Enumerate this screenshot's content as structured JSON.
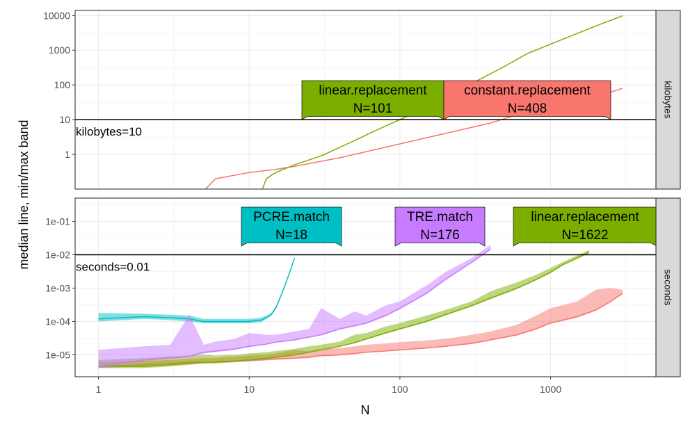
{
  "chart_data": {
    "type": "line",
    "xlabel": "N",
    "ylabel": "median line, min/max band",
    "x_scale": "log10",
    "xlim": [
      0.7,
      5000
    ],
    "x_ticks": [
      1,
      10,
      100,
      1000
    ],
    "x_tick_labels": [
      "1",
      "10",
      "100",
      "1000"
    ],
    "grid": true,
    "legend": "none",
    "colors": {
      "constant.replacement": "#F8766D",
      "linear.replacement": "#7CAE00",
      "PCRE.match": "#00BFC4",
      "TRE.match": "#C77CFF",
      "strip_bg": "#d9d9d9"
    },
    "panels": [
      {
        "strip": "kilobytes",
        "y_scale": "log10",
        "ylim": [
          0.1,
          14000
        ],
        "y_ticks": [
          1,
          10,
          100,
          1000,
          10000
        ],
        "y_tick_labels": [
          "1",
          "10",
          "100",
          "1000",
          "10000"
        ],
        "ref_line": {
          "y": 10,
          "label": "kilobytes=10"
        },
        "series": [
          {
            "name": "constant.replacement",
            "x": [
              3.5,
              5,
              6,
              8,
              10,
              15,
              20,
              40,
              60,
              100,
              200,
              400,
              600,
              1000,
              2000,
              3000
            ],
            "y": [
              0.04,
              0.09,
              0.2,
              0.25,
              0.3,
              0.37,
              0.45,
              0.8,
              1.2,
              2,
              4,
              8,
              14,
              22,
              45,
              80
            ]
          },
          {
            "name": "linear.replacement",
            "x": [
              12,
              13,
              15,
              20,
              30,
              50,
              70,
              100,
              150,
              200,
              300,
              500,
              700,
              1000,
              2000,
              3000
            ],
            "y": [
              0.08,
              0.2,
              0.3,
              0.5,
              0.9,
              2.5,
              5,
              10,
              22,
              45,
              110,
              350,
              800,
              1500,
              5000,
              9800
            ]
          }
        ],
        "boxes": [
          {
            "series": "linear.replacement",
            "name": "linear.replacement",
            "label": "N=101"
          },
          {
            "series": "constant.replacement",
            "name": "constant.replacement",
            "label": "N=408"
          }
        ]
      },
      {
        "strip": "seconds",
        "y_scale": "log10",
        "ylim": [
          2.2e-06,
          0.5
        ],
        "y_ticks": [
          1e-05,
          0.0001,
          0.001,
          0.01,
          0.1
        ],
        "y_tick_labels": [
          "1e-05",
          "1e-04",
          "1e-03",
          "1e-02",
          "1e-01"
        ],
        "ref_line": {
          "y": 0.01,
          "label": "seconds=0.01"
        },
        "series": [
          {
            "name": "constant.replacement",
            "x": [
              1,
              2,
              3,
              4,
              5,
              6,
              8,
              10,
              13,
              15,
              20,
              25,
              30,
              40,
              50,
              60,
              80,
              100,
              150,
              200,
              300,
              400,
              600,
              800,
              1000,
              1500,
              2000,
              2500,
              3000
            ],
            "y": [
              4.5e-06,
              5e-06,
              5.5e-06,
              6e-06,
              6e-06,
              6.2e-06,
              6.5e-06,
              6.8e-06,
              7.2e-06,
              7.5e-06,
              8e-06,
              8.5e-06,
              9.5e-06,
              1e-05,
              1.1e-05,
              1.2e-05,
              1.3e-05,
              1.4e-05,
              1.6e-05,
              1.8e-05,
              2.2e-05,
              2.8e-05,
              4e-05,
              6e-05,
              9e-05,
              0.00014,
              0.00022,
              0.0004,
              0.0007
            ],
            "min": [
              4e-06,
              4.5e-06,
              5e-06,
              5.5e-06,
              5.5e-06,
              5.8e-06,
              6e-06,
              6.3e-06,
              6.8e-06,
              7e-06,
              7.5e-06,
              8e-06,
              9e-06,
              9.5e-06,
              1.05e-05,
              1.15e-05,
              1.25e-05,
              1.35e-05,
              1.55e-05,
              1.75e-05,
              2.1e-05,
              2.7e-05,
              3.8e-05,
              5.7e-05,
              8.5e-05,
              0.00013,
              0.00021,
              0.00038,
              0.00065
            ],
            "max": [
              6e-06,
              6.5e-06,
              7e-06,
              7.5e-06,
              8e-06,
              8e-06,
              9e-06,
              9.5e-06,
              1e-05,
              1.1e-05,
              1.4e-05,
              1.3e-05,
              1.5e-05,
              1.6e-05,
              1.8e-05,
              2e-05,
              2.2e-05,
              2.4e-05,
              2.7e-05,
              3e-05,
              4e-05,
              5e-05,
              8e-05,
              0.00015,
              0.00025,
              0.0004,
              0.0009,
              0.001,
              0.0009
            ]
          },
          {
            "name": "linear.replacement",
            "x": [
              1,
              2,
              3,
              4,
              5,
              6,
              8,
              10,
              13,
              15,
              20,
              25,
              30,
              40,
              50,
              60,
              80,
              100,
              150,
              200,
              300,
              400,
              600,
              800,
              1000,
              1200,
              1500,
              1800
            ],
            "y": [
              4.5e-06,
              4.5e-06,
              5e-06,
              5.5e-06,
              6e-06,
              6e-06,
              6.5e-06,
              7e-06,
              8e-06,
              8.5e-06,
              1e-05,
              1.2e-05,
              1.4e-05,
              1.8e-05,
              2.3e-05,
              3e-05,
              4.5e-05,
              6e-05,
              0.0001,
              0.00016,
              0.0003,
              0.0005,
              0.001,
              0.0018,
              0.003,
              0.005,
              0.008,
              0.012
            ],
            "min": [
              4e-06,
              4e-06,
              4.5e-06,
              5e-06,
              5.5e-06,
              5.5e-06,
              6e-06,
              6.5e-06,
              7.5e-06,
              8e-06,
              9.5e-06,
              1.15e-05,
              1.35e-05,
              1.75e-05,
              2.2e-05,
              2.9e-05,
              4.3e-05,
              5.7e-05,
              9.5e-05,
              0.00015,
              0.00028,
              0.00047,
              0.00095,
              0.0017,
              0.0028,
              0.0047,
              0.0075,
              0.011
            ],
            "max": [
              7e-06,
              8e-06,
              9e-06,
              9.5e-06,
              1e-05,
              9.5e-06,
              1e-05,
              1.1e-05,
              1.2e-05,
              1.3e-05,
              1.5e-05,
              1.8e-05,
              2e-05,
              2.5e-05,
              4e-05,
              4.5e-05,
              7e-05,
              9e-05,
              0.00015,
              0.00022,
              0.0004,
              0.0008,
              0.0015,
              0.0025,
              0.004,
              0.006,
              0.0095,
              0.014
            ]
          },
          {
            "name": "PCRE.match",
            "x": [
              1,
              2,
              3,
              4,
              5,
              6,
              8,
              10,
              12,
              13,
              14,
              15,
              16,
              17,
              18,
              19,
              20
            ],
            "y": [
              0.00012,
              0.00014,
              0.00013,
              0.00012,
              0.0001,
              0.0001,
              0.0001,
              0.0001,
              0.00011,
              0.00013,
              0.00016,
              0.00025,
              0.0005,
              0.001,
              0.002,
              0.004,
              0.008
            ],
            "min": [
              0.0001,
              0.00012,
              0.00011,
              0.0001,
              8.8e-05,
              8.8e-05,
              8.8e-05,
              8.8e-05,
              9.5e-05,
              0.00012,
              0.00015,
              0.00023,
              0.00046,
              0.00093,
              0.0019,
              0.0038,
              0.0075
            ],
            "max": [
              0.00018,
              0.00017,
              0.00016,
              0.00015,
              0.00012,
              0.00012,
              0.00012,
              0.00012,
              0.00013,
              0.00015,
              0.00018,
              0.00028,
              0.00055,
              0.0011,
              0.0022,
              0.0043,
              0.0085
            ]
          },
          {
            "name": "TRE.match",
            "x": [
              1,
              2,
              3,
              4,
              5,
              6,
              8,
              10,
              13,
              15,
              20,
              25,
              30,
              40,
              50,
              60,
              80,
              100,
              150,
              200,
              300,
              400
            ],
            "y": [
              4.5e-06,
              7e-06,
              8e-06,
              9e-06,
              1.2e-05,
              1.3e-05,
              1.5e-05,
              1.8e-05,
              2.1e-05,
              2.4e-05,
              2.8e-05,
              3.4e-05,
              4e-05,
              6e-05,
              7.5e-05,
              9e-05,
              0.00015,
              0.00025,
              0.0007,
              0.0018,
              0.006,
              0.015
            ],
            "min": [
              4e-06,
              6.5e-06,
              7.5e-06,
              8.5e-06,
              1.1e-05,
              1.2e-05,
              1.4e-05,
              1.7e-05,
              2e-05,
              2.3e-05,
              2.7e-05,
              3.3e-05,
              3.8e-05,
              5.7e-05,
              7e-05,
              8.5e-05,
              0.00014,
              0.00023,
              0.00065,
              0.0017,
              0.0057,
              0.014
            ],
            "max": [
              1.4e-05,
              1.8e-05,
              2e-05,
              0.00016,
              2e-05,
              2.5e-05,
              3e-05,
              4.5e-05,
              4e-05,
              4e-05,
              5e-05,
              6e-05,
              0.00025,
              0.00012,
              0.0002,
              0.00015,
              0.0003,
              0.0004,
              0.0012,
              0.003,
              0.008,
              0.02
            ]
          }
        ],
        "boxes": [
          {
            "series": "PCRE.match",
            "name": "PCRE.match",
            "label": "N=18"
          },
          {
            "series": "TRE.match",
            "name": "TRE.match",
            "label": "N=176"
          },
          {
            "series": "linear.replacement",
            "name": "linear.replacement",
            "label": "N=1622"
          }
        ]
      }
    ]
  }
}
